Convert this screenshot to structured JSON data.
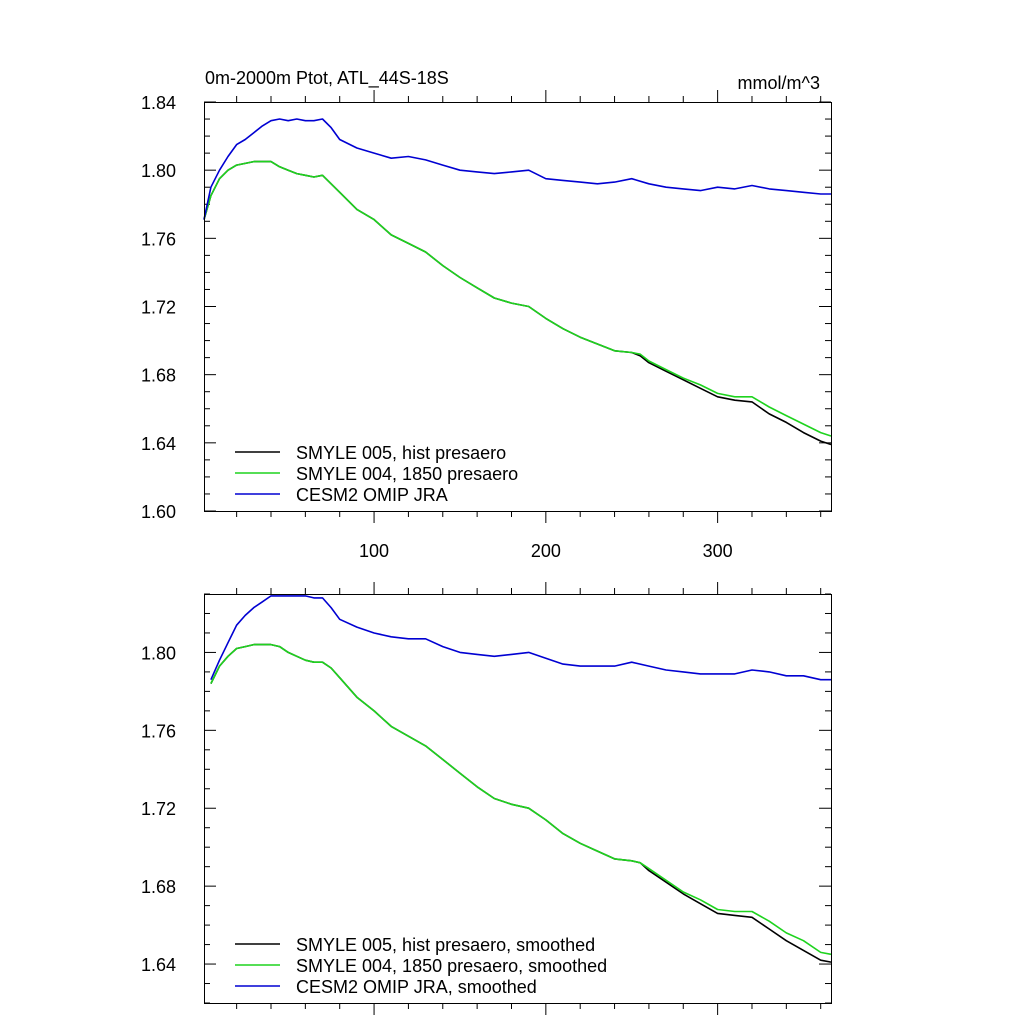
{
  "chart_data": [
    {
      "type": "line",
      "title": "0m-2000m Ptot, ATL_44S-18S",
      "units": "mmol/m^3",
      "xlim": [
        1,
        366
      ],
      "ylim": [
        1.6,
        1.84
      ],
      "xticks": [
        100,
        200,
        300
      ],
      "xtick_labels": [
        "100",
        "200",
        "300"
      ],
      "yticks": [
        1.6,
        1.64,
        1.68,
        1.72,
        1.76,
        1.8,
        1.84
      ],
      "ytick_labels": [
        "1.60",
        "1.64",
        "1.68",
        "1.72",
        "1.76",
        "1.80",
        "1.84"
      ],
      "legend_position": "bottom-left",
      "series": [
        {
          "name": "SMYLE 005, hist presaero",
          "color": "#000000",
          "x": [
            1,
            5,
            10,
            15,
            20,
            25,
            30,
            35,
            40,
            45,
            50,
            55,
            60,
            65,
            70,
            75,
            80,
            90,
            100,
            110,
            120,
            130,
            140,
            150,
            160,
            170,
            180,
            190,
            200,
            210,
            220,
            230,
            240,
            250,
            255,
            260,
            270,
            280,
            290,
            300,
            310,
            320,
            330,
            340,
            350,
            360,
            366
          ],
          "y": [
            1.771,
            1.785,
            1.795,
            1.8,
            1.803,
            1.804,
            1.805,
            1.805,
            1.805,
            1.802,
            1.8,
            1.798,
            1.797,
            1.796,
            1.797,
            1.792,
            1.787,
            1.777,
            1.771,
            1.762,
            1.757,
            1.752,
            1.744,
            1.737,
            1.731,
            1.725,
            1.722,
            1.72,
            1.713,
            1.707,
            1.702,
            1.698,
            1.694,
            1.693,
            1.691,
            1.687,
            1.682,
            1.677,
            1.672,
            1.667,
            1.665,
            1.664,
            1.657,
            1.652,
            1.646,
            1.641,
            1.639
          ]
        },
        {
          "name": "SMYLE 004, 1850 presaero",
          "color": "#1ed31e",
          "x": [
            1,
            5,
            10,
            15,
            20,
            25,
            30,
            35,
            40,
            45,
            50,
            55,
            60,
            65,
            70,
            75,
            80,
            90,
            100,
            110,
            120,
            130,
            140,
            150,
            160,
            170,
            180,
            190,
            200,
            210,
            220,
            230,
            240,
            250,
            255,
            260,
            270,
            280,
            290,
            300,
            310,
            320,
            330,
            340,
            350,
            360,
            366
          ],
          "y": [
            1.771,
            1.785,
            1.795,
            1.8,
            1.803,
            1.804,
            1.805,
            1.805,
            1.805,
            1.802,
            1.8,
            1.798,
            1.797,
            1.796,
            1.797,
            1.792,
            1.787,
            1.777,
            1.771,
            1.762,
            1.757,
            1.752,
            1.744,
            1.737,
            1.731,
            1.725,
            1.722,
            1.72,
            1.713,
            1.707,
            1.702,
            1.698,
            1.694,
            1.693,
            1.692,
            1.688,
            1.683,
            1.678,
            1.674,
            1.669,
            1.667,
            1.667,
            1.661,
            1.656,
            1.651,
            1.646,
            1.644
          ]
        },
        {
          "name": "CESM2 OMIP JRA",
          "color": "#0000d2",
          "x": [
            1,
            5,
            10,
            15,
            20,
            25,
            30,
            35,
            40,
            45,
            50,
            55,
            60,
            65,
            70,
            75,
            80,
            90,
            100,
            110,
            120,
            130,
            140,
            150,
            160,
            170,
            180,
            190,
            200,
            210,
            220,
            230,
            240,
            250,
            260,
            270,
            280,
            290,
            300,
            310,
            320,
            330,
            340,
            350,
            360,
            366
          ],
          "y": [
            1.771,
            1.79,
            1.8,
            1.808,
            1.815,
            1.818,
            1.822,
            1.826,
            1.829,
            1.83,
            1.829,
            1.83,
            1.829,
            1.829,
            1.83,
            1.825,
            1.818,
            1.813,
            1.81,
            1.807,
            1.808,
            1.806,
            1.803,
            1.8,
            1.799,
            1.798,
            1.799,
            1.8,
            1.795,
            1.794,
            1.793,
            1.792,
            1.793,
            1.795,
            1.792,
            1.79,
            1.789,
            1.788,
            1.79,
            1.789,
            1.791,
            1.789,
            1.788,
            1.787,
            1.786,
            1.786
          ]
        }
      ]
    },
    {
      "type": "line",
      "title": "",
      "xlim": [
        1,
        366
      ],
      "ylim": [
        1.62,
        1.83
      ],
      "xticks": [
        100,
        200,
        300
      ],
      "yticks": [
        1.64,
        1.68,
        1.72,
        1.76,
        1.8
      ],
      "ytick_labels": [
        "1.64",
        "1.68",
        "1.72",
        "1.76",
        "1.80"
      ],
      "legend_position": "bottom-left",
      "series": [
        {
          "name": "SMYLE 005, hist presaero, smoothed",
          "color": "#000000",
          "x": [
            5,
            10,
            15,
            20,
            25,
            30,
            35,
            40,
            45,
            50,
            55,
            60,
            65,
            70,
            75,
            80,
            90,
            100,
            110,
            120,
            130,
            140,
            150,
            160,
            170,
            180,
            190,
            200,
            210,
            220,
            230,
            240,
            250,
            255,
            260,
            270,
            280,
            290,
            300,
            310,
            320,
            330,
            340,
            350,
            360,
            366
          ],
          "y": [
            1.784,
            1.793,
            1.798,
            1.802,
            1.803,
            1.804,
            1.804,
            1.804,
            1.803,
            1.8,
            1.798,
            1.796,
            1.795,
            1.795,
            1.792,
            1.787,
            1.777,
            1.77,
            1.762,
            1.757,
            1.752,
            1.745,
            1.738,
            1.731,
            1.725,
            1.722,
            1.72,
            1.714,
            1.707,
            1.702,
            1.698,
            1.694,
            1.693,
            1.692,
            1.688,
            1.682,
            1.676,
            1.671,
            1.666,
            1.665,
            1.664,
            1.658,
            1.652,
            1.647,
            1.642,
            1.641
          ]
        },
        {
          "name": "SMYLE 004, 1850 presaero, smoothed",
          "color": "#1ed31e",
          "x": [
            5,
            10,
            15,
            20,
            25,
            30,
            35,
            40,
            45,
            50,
            55,
            60,
            65,
            70,
            75,
            80,
            90,
            100,
            110,
            120,
            130,
            140,
            150,
            160,
            170,
            180,
            190,
            200,
            210,
            220,
            230,
            240,
            250,
            255,
            260,
            270,
            280,
            290,
            300,
            310,
            320,
            330,
            340,
            350,
            360,
            366
          ],
          "y": [
            1.784,
            1.793,
            1.798,
            1.802,
            1.803,
            1.804,
            1.804,
            1.804,
            1.803,
            1.8,
            1.798,
            1.796,
            1.795,
            1.795,
            1.792,
            1.787,
            1.777,
            1.77,
            1.762,
            1.757,
            1.752,
            1.745,
            1.738,
            1.731,
            1.725,
            1.722,
            1.72,
            1.714,
            1.707,
            1.702,
            1.698,
            1.694,
            1.693,
            1.692,
            1.689,
            1.683,
            1.677,
            1.673,
            1.668,
            1.667,
            1.667,
            1.662,
            1.656,
            1.652,
            1.646,
            1.645
          ]
        },
        {
          "name": "CESM2 OMIP JRA, smoothed",
          "color": "#0000d2",
          "x": [
            5,
            10,
            15,
            20,
            25,
            30,
            35,
            40,
            45,
            50,
            55,
            60,
            65,
            70,
            75,
            80,
            90,
            100,
            110,
            120,
            130,
            140,
            150,
            160,
            170,
            180,
            190,
            200,
            210,
            220,
            230,
            240,
            250,
            260,
            270,
            280,
            290,
            300,
            310,
            320,
            330,
            340,
            350,
            360,
            366
          ],
          "y": [
            1.786,
            1.796,
            1.805,
            1.814,
            1.819,
            1.823,
            1.826,
            1.829,
            1.829,
            1.829,
            1.829,
            1.829,
            1.828,
            1.828,
            1.823,
            1.817,
            1.813,
            1.81,
            1.808,
            1.807,
            1.807,
            1.803,
            1.8,
            1.799,
            1.798,
            1.799,
            1.8,
            1.797,
            1.794,
            1.793,
            1.793,
            1.793,
            1.795,
            1.793,
            1.791,
            1.79,
            1.789,
            1.789,
            1.789,
            1.791,
            1.79,
            1.788,
            1.788,
            1.786,
            1.786
          ]
        }
      ]
    }
  ]
}
